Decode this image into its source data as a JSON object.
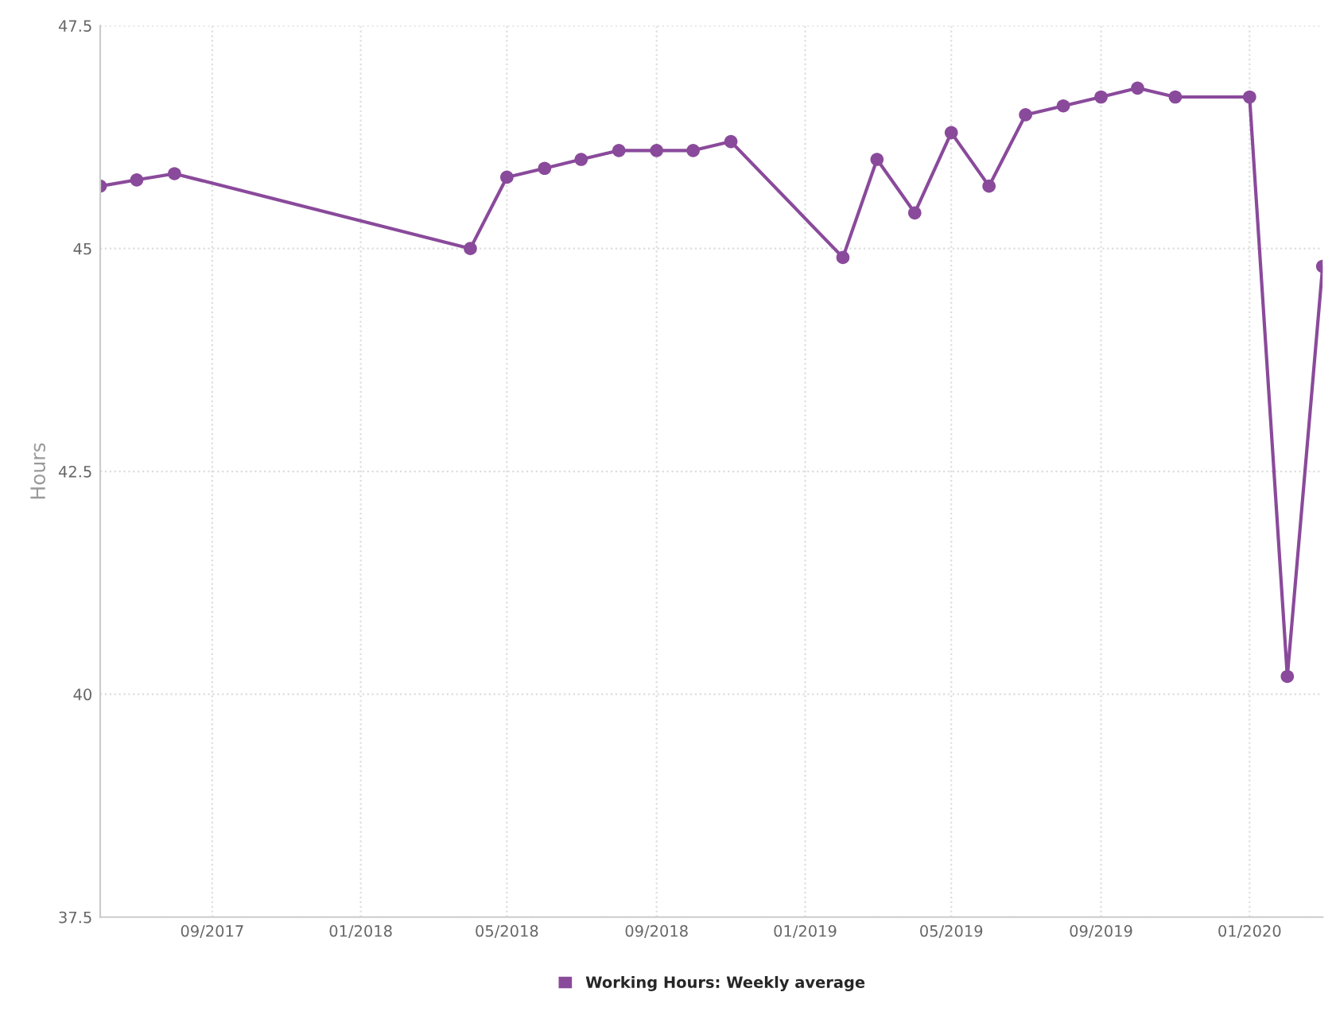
{
  "chart_data": {
    "type": "line",
    "ylabel": "Hours",
    "x": [
      "2017-06",
      "2017-07",
      "2017-08",
      "2018-04",
      "2018-05",
      "2018-06",
      "2018-07",
      "2018-08",
      "2018-09",
      "2018-10",
      "2018-11",
      "2019-02",
      "2019-03",
      "2019-04",
      "2019-05",
      "2019-06",
      "2019-07",
      "2019-08",
      "2019-09",
      "2019-10",
      "2019-11",
      "2020-01",
      "2020-02",
      "2020-03"
    ],
    "series": [
      {
        "name": "Working Hours: Weekly average",
        "color": "#8a4a9b",
        "values": [
          45.7,
          45.77,
          45.84,
          45.0,
          45.8,
          45.9,
          46.0,
          46.1,
          46.1,
          46.1,
          46.2,
          44.9,
          46.0,
          45.4,
          46.3,
          45.7,
          46.5,
          46.6,
          46.7,
          46.8,
          46.7,
          46.7,
          40.2,
          44.8
        ]
      }
    ],
    "xlim": [
      "2017-06",
      "2020-03"
    ],
    "xticks": [
      {
        "value": "2017-09",
        "label": "09/2017"
      },
      {
        "value": "2018-01",
        "label": "01/2018"
      },
      {
        "value": "2018-05",
        "label": "05/2018"
      },
      {
        "value": "2018-09",
        "label": "09/2018"
      },
      {
        "value": "2019-01",
        "label": "01/2019"
      },
      {
        "value": "2019-05",
        "label": "05/2019"
      },
      {
        "value": "2019-09",
        "label": "09/2019"
      },
      {
        "value": "2020-01",
        "label": "01/2020"
      }
    ],
    "ylim": [
      37.5,
      47.5
    ],
    "yticks": [
      37.5,
      40,
      42.5,
      45,
      47.5
    ],
    "grid": true,
    "legend": "bottom",
    "marker": "circle",
    "line_style": "solid"
  }
}
